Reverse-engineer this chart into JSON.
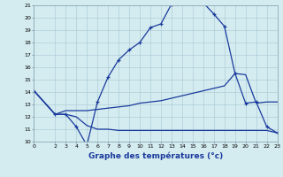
{
  "xlabel": "Graphe des températures (°c)",
  "xlim": [
    0,
    23
  ],
  "ylim": [
    10,
    21
  ],
  "xticks": [
    0,
    2,
    3,
    4,
    5,
    6,
    7,
    8,
    9,
    10,
    11,
    12,
    13,
    14,
    15,
    16,
    17,
    18,
    19,
    20,
    21,
    22,
    23
  ],
  "yticks": [
    10,
    11,
    12,
    13,
    14,
    15,
    16,
    17,
    18,
    19,
    20,
    21
  ],
  "bg_color": "#d4ecf0",
  "grid_color": "#b0cdd8",
  "line_color": "#1a3a9c",
  "line1_x": [
    0,
    2,
    3,
    4,
    5,
    6,
    7,
    8,
    9,
    10,
    11,
    12,
    13,
    14,
    15,
    16,
    17,
    18,
    19,
    20,
    21,
    22,
    23
  ],
  "line1_y": [
    14.1,
    12.2,
    12.2,
    11.2,
    9.7,
    13.2,
    15.2,
    16.6,
    17.4,
    18.0,
    19.2,
    19.5,
    21.1,
    21.3,
    21.3,
    21.2,
    20.3,
    19.3,
    15.5,
    13.1,
    13.2,
    11.2,
    10.7
  ],
  "line2_x": [
    0,
    2,
    3,
    4,
    5,
    6,
    7,
    8,
    9,
    10,
    11,
    12,
    13,
    14,
    15,
    16,
    17,
    18,
    19,
    20,
    21,
    22,
    23
  ],
  "line2_y": [
    14.1,
    12.2,
    12.5,
    12.5,
    12.5,
    12.6,
    12.7,
    12.8,
    12.9,
    13.1,
    13.2,
    13.3,
    13.5,
    13.7,
    13.9,
    14.1,
    14.3,
    14.5,
    15.5,
    15.4,
    13.1,
    13.2,
    13.2
  ],
  "line3_x": [
    0,
    2,
    3,
    4,
    5,
    6,
    7,
    8,
    9,
    10,
    11,
    12,
    13,
    14,
    15,
    16,
    17,
    18,
    19,
    20,
    21,
    22,
    23
  ],
  "line3_y": [
    14.1,
    12.2,
    12.2,
    12.0,
    11.3,
    11.0,
    11.0,
    10.9,
    10.9,
    10.9,
    10.9,
    10.9,
    10.9,
    10.9,
    10.9,
    10.9,
    10.9,
    10.9,
    10.9,
    10.9,
    10.9,
    10.9,
    10.7
  ],
  "marker": "+"
}
